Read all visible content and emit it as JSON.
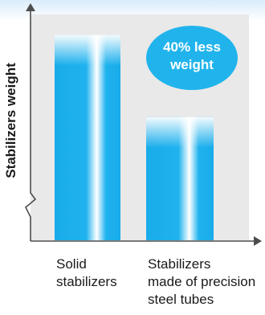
{
  "chart_data": {
    "type": "bar",
    "ylabel": "Stabilizers weight",
    "categories": [
      "Solid\nstabilizers",
      "Stabilizers\nmade of precision\nsteel tubes"
    ],
    "values": [
      100,
      60
    ],
    "ylim": [
      0,
      110
    ],
    "grid": false,
    "axis_break": true,
    "annotation": "40% less\nweight",
    "colors": {
      "bar": "#1fb2ee",
      "bar_highlight": "#ffffff",
      "plot_bg": "#e9e9e9",
      "axis": "#4d4d4d",
      "badge": "#21b4ec"
    }
  }
}
